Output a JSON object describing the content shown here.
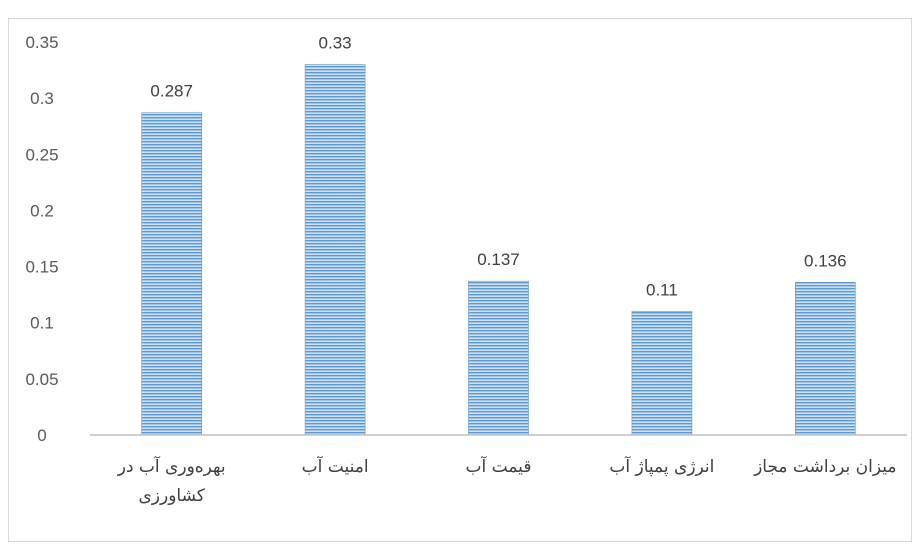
{
  "chart_data": {
    "type": "bar",
    "title": "",
    "xlabel": "",
    "ylabel": "",
    "categories": [
      [
        "بهره‌وری آب در",
        "کشاورزی"
      ],
      [
        "امنیت آب"
      ],
      [
        "قیمت آب"
      ],
      [
        "انرژی پمپاژ آب"
      ],
      [
        "میزان برداشت مجاز"
      ]
    ],
    "series": [
      {
        "values": [
          0.287,
          0.33,
          0.137,
          0.11,
          0.136
        ]
      }
    ],
    "data_labels": [
      "0.287",
      "0.33",
      "0.137",
      "0.11",
      "0.136"
    ],
    "y_ticks": [
      "0",
      "0.05",
      "0.1",
      "0.15",
      "0.2",
      "0.25",
      "0.3",
      "0.35"
    ],
    "ylim": [
      0,
      0.35
    ],
    "grid": false,
    "legend": "none",
    "bar_fill": "#9dc3e6",
    "bar_stripe": "#5b9bd5",
    "axis_color": "#bfbfbf"
  }
}
